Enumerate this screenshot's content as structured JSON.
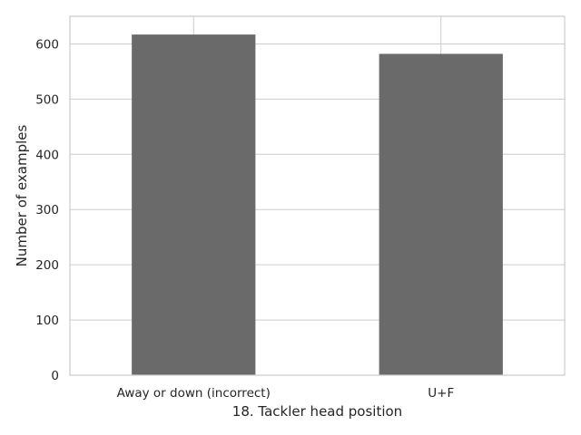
{
  "chart_data": {
    "type": "bar",
    "title": "",
    "xlabel": "18. Tackler head position",
    "ylabel": "Number of examples",
    "categories": [
      "Away or down (incorrect)",
      "U+F"
    ],
    "values": [
      617,
      582
    ],
    "ylim": [
      0,
      650
    ],
    "yticks": [
      0,
      100,
      200,
      300,
      400,
      500,
      600
    ],
    "grid": true,
    "legend": "none",
    "colors": {
      "bar": "#6a6a6a",
      "grid": "#cccccc",
      "spine": "#cccccc",
      "text": "#262626"
    }
  }
}
